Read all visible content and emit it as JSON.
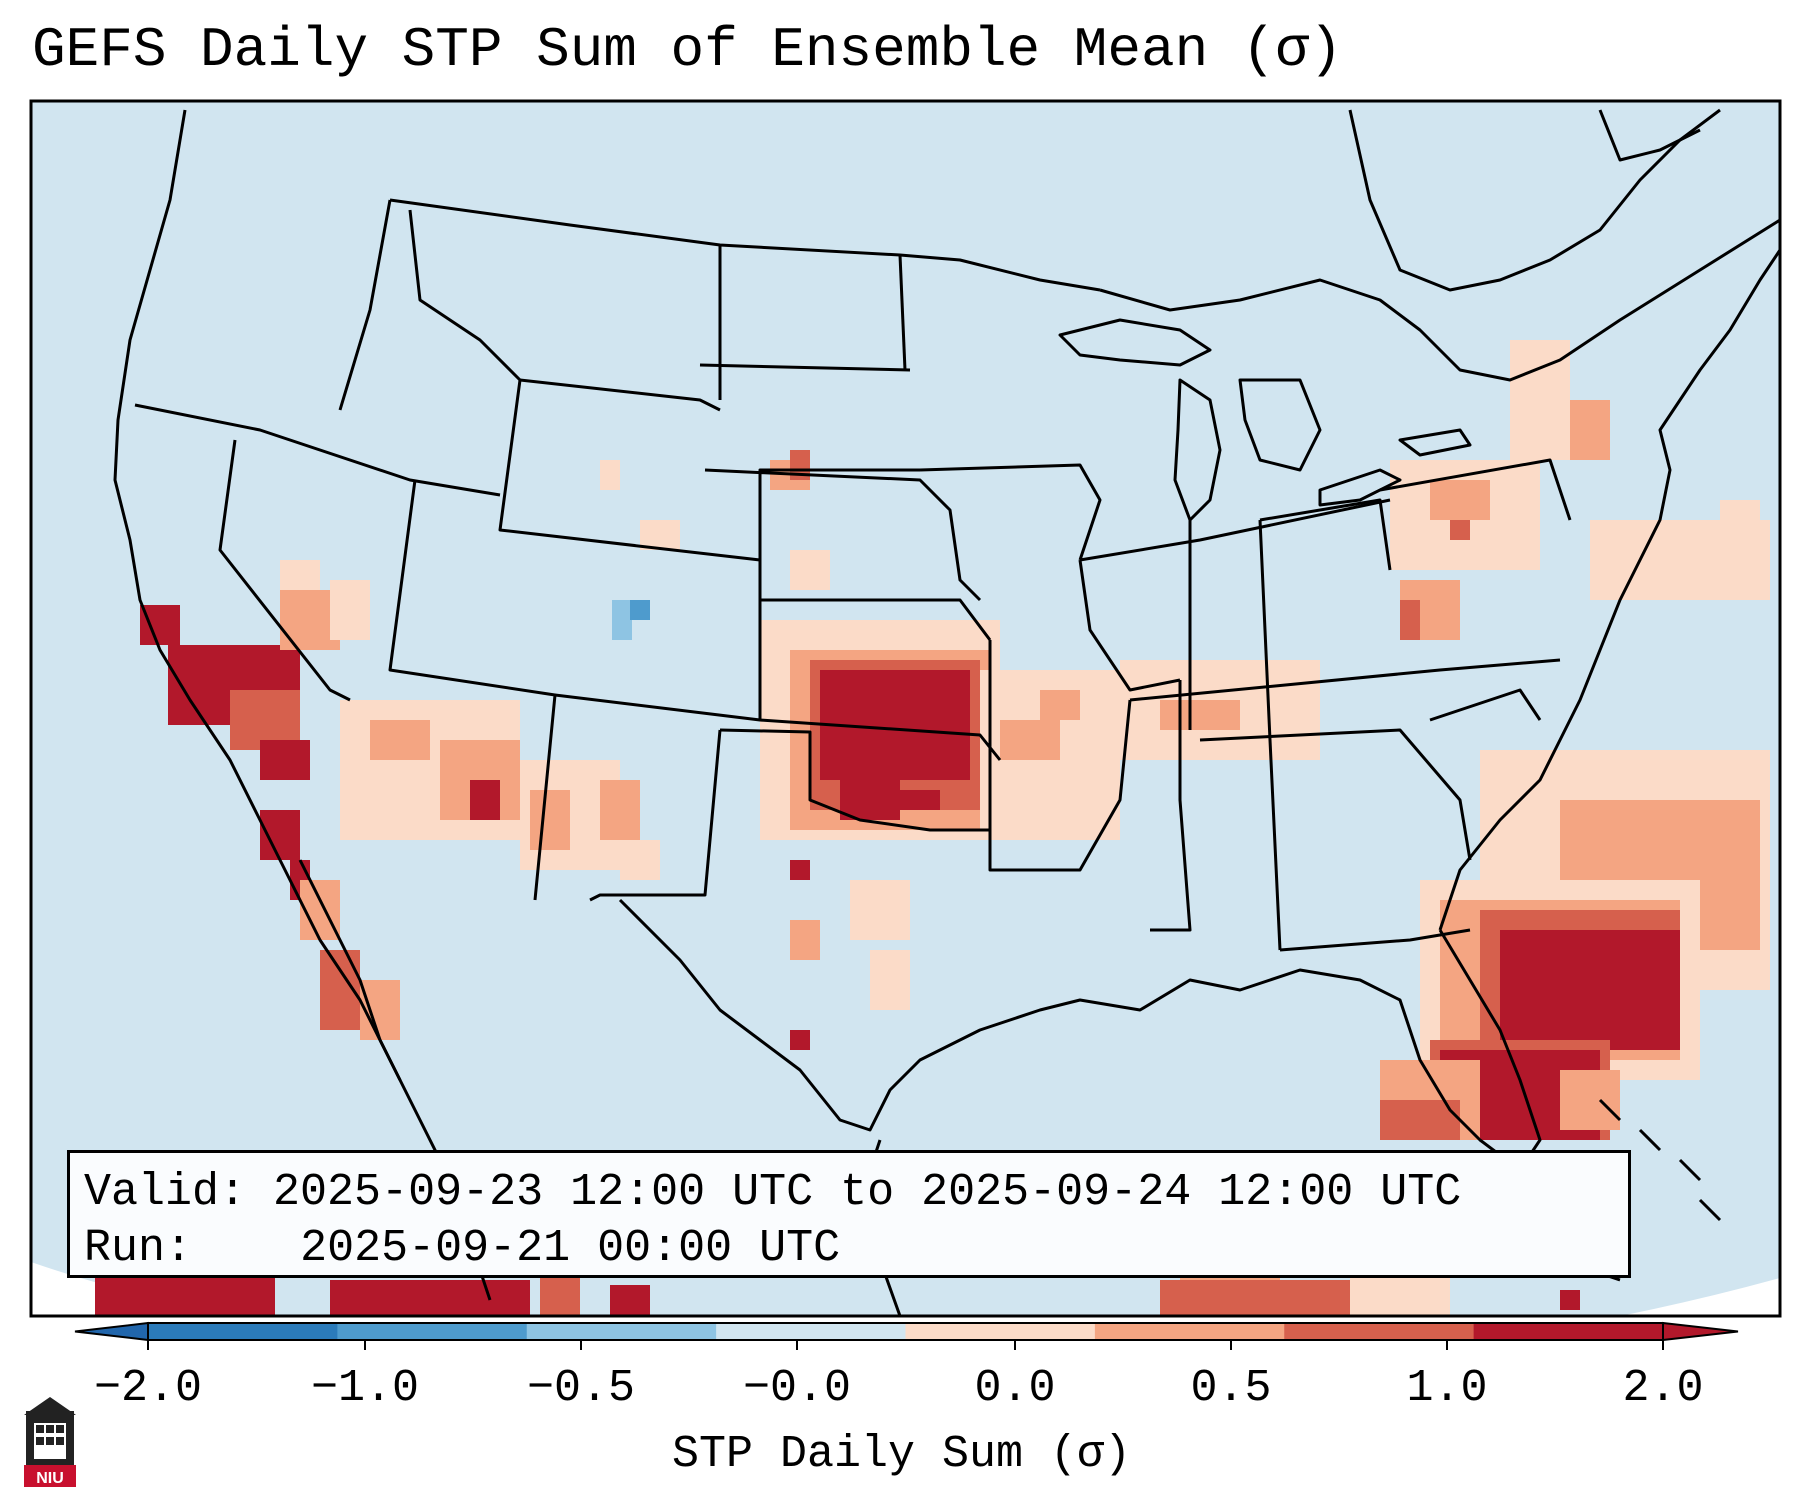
{
  "title": "GEFS Daily STP Sum of Ensemble Mean (σ)",
  "info": {
    "valid_label": "Valid:",
    "valid_value": "2025-09-23 12:00 UTC to 2025-09-24 12:00 UTC",
    "run_label": "Run:",
    "run_value": "2025-09-21 00:00 UTC"
  },
  "colorbar": {
    "label": "STP Daily Sum (σ)",
    "ticks": [
      "−2.0",
      "−1.0",
      "−0.5",
      "−0.0",
      "0.0",
      "0.5",
      "1.0",
      "2.0"
    ],
    "colors": [
      "#2b7bba",
      "#4e9bcd",
      "#8ec4e3",
      "#d1e5f0",
      "#fbdbc8",
      "#f4a582",
      "#d6604d",
      "#b2182b"
    ],
    "extend_low_color": "#2166ac",
    "extend_high_color": "#b2182b"
  },
  "map": {
    "ocean_color": "#d1e5f0",
    "region_label": "Contiguous United States",
    "highlights": [
      {
        "region": "Kansas-Oklahoma",
        "level": "high"
      },
      {
        "region": "Southern California",
        "level": "high"
      },
      {
        "region": "Florida & western Atlantic",
        "level": "high"
      },
      {
        "region": "Mid-Atlantic & Northeast",
        "level": "low-positive"
      },
      {
        "region": "Southwest (Arizona)",
        "level": "moderate"
      }
    ]
  },
  "logo": {
    "text": "NIU"
  }
}
